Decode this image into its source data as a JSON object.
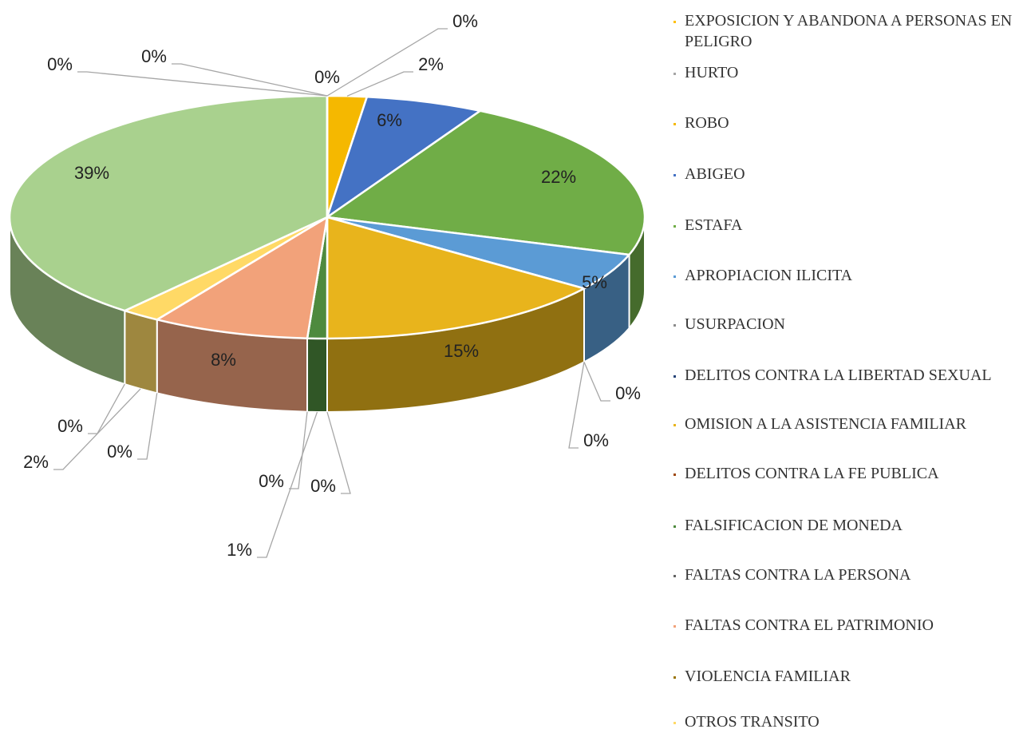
{
  "chart_data": {
    "type": "pie",
    "categories": [
      "EXPOSICION Y ABANDONA A PERSONAS EN PELIGRO",
      "HURTO",
      "ROBO",
      "ABIGEO",
      "ESTAFA",
      "APROPIACION ILICITA",
      "USURPACION",
      "DELITOS CONTRA LA LIBERTAD SEXUAL",
      "OMISION A LA ASISTENCIA FAMILIAR",
      "DELITOS CONTRA LA FE PUBLICA",
      "FALSIFICACION DE MONEDA",
      "FALTAS CONTRA LA PERSONA",
      "FALTAS CONTRA EL PATRIMONIO",
      "VIOLENCIA FAMILIAR",
      "OTROS TRANSITO",
      null,
      null,
      null,
      null
    ],
    "values": [
      0,
      0,
      2,
      6,
      22,
      5,
      0,
      0,
      15,
      0,
      1,
      0,
      8,
      0,
      2,
      0,
      39,
      0,
      0
    ],
    "value_labels": [
      "0%",
      "0%",
      "2%",
      "6%",
      "22%",
      "5%",
      "0%",
      "0%",
      "15%",
      "0%",
      "1%",
      "0%",
      "8%",
      "0%",
      "2%",
      "0%",
      "39%",
      "0%",
      "0%"
    ],
    "colors": [
      "#ffc000",
      "#a5a5a5",
      "#f5b800",
      "#4472c4",
      "#70ad47",
      "#5b9bd5",
      "#8c8c8c",
      "#264478",
      "#e8b41c",
      "#9e480e",
      "#4e8a3e",
      "#636363",
      "#f2a27a",
      "#997300",
      "#ffd966",
      "#43682b",
      "#a9d18e",
      "#7cafdd",
      "#f4b183"
    ]
  }
}
